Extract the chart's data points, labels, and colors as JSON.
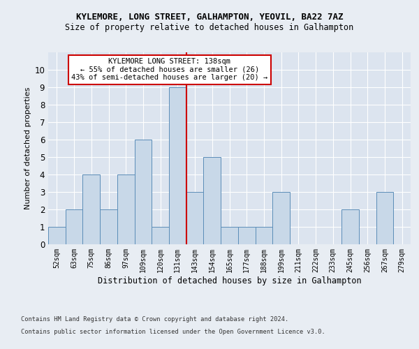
{
  "title1": "KYLEMORE, LONG STREET, GALHAMPTON, YEOVIL, BA22 7AZ",
  "title2": "Size of property relative to detached houses in Galhampton",
  "xlabel": "Distribution of detached houses by size in Galhampton",
  "ylabel": "Number of detached properties",
  "footnote1": "Contains HM Land Registry data © Crown copyright and database right 2024.",
  "footnote2": "Contains public sector information licensed under the Open Government Licence v3.0.",
  "categories": [
    "52sqm",
    "63sqm",
    "75sqm",
    "86sqm",
    "97sqm",
    "109sqm",
    "120sqm",
    "131sqm",
    "143sqm",
    "154sqm",
    "165sqm",
    "177sqm",
    "188sqm",
    "199sqm",
    "211sqm",
    "222sqm",
    "233sqm",
    "245sqm",
    "256sqm",
    "267sqm",
    "279sqm"
  ],
  "values": [
    1,
    2,
    4,
    2,
    4,
    6,
    1,
    9,
    3,
    5,
    1,
    1,
    1,
    3,
    0,
    0,
    0,
    2,
    0,
    3,
    0
  ],
  "bar_color": "#c8d8e8",
  "bar_edge_color": "#5b8db8",
  "highlight_index": 7,
  "highlight_line_color": "#cc0000",
  "annotation_box_text": "KYLEMORE LONG STREET: 138sqm\n← 55% of detached houses are smaller (26)\n43% of semi-detached houses are larger (20) →",
  "annotation_box_color": "#cc0000",
  "annotation_box_fill": "#ffffff",
  "ylim": [
    0,
    11
  ],
  "yticks": [
    0,
    1,
    2,
    3,
    4,
    5,
    6,
    7,
    8,
    9,
    10,
    11
  ],
  "bg_color": "#e8edf3",
  "plot_bg_color": "#dce4ef"
}
